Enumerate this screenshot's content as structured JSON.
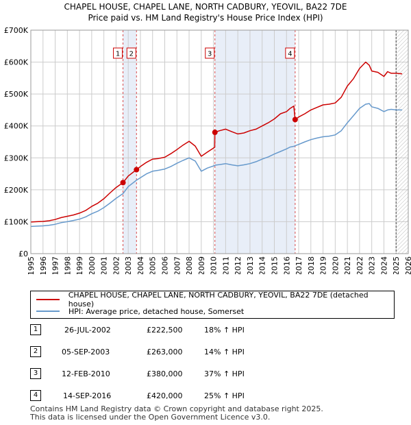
{
  "title_line1": "CHAPEL HOUSE, CHAPEL LANE, NORTH CADBURY, YEOVIL, BA22 7DE",
  "title_line2": "Price paid vs. HM Land Registry's House Price Index (HPI)",
  "colors": {
    "property": "#cc0000",
    "hpi": "#6699cc",
    "shade": "#e8eef8",
    "marker_line": "#cc0000",
    "grid": "#cccccc"
  },
  "chart_data": {
    "type": "line",
    "title": "Price paid vs. HM Land Registry's House Price Index (HPI)",
    "xlim": [
      1995,
      2026
    ],
    "ylim": [
      0,
      700000
    ],
    "y_ticks": [
      {
        "value": 0,
        "label": "£0"
      },
      {
        "value": 100000,
        "label": "£100K"
      },
      {
        "value": 200000,
        "label": "£200K"
      },
      {
        "value": 300000,
        "label": "£300K"
      },
      {
        "value": 400000,
        "label": "£400K"
      },
      {
        "value": 500000,
        "label": "£500K"
      },
      {
        "value": 600000,
        "label": "£600K"
      },
      {
        "value": 700000,
        "label": "£700K"
      }
    ],
    "x_ticks": [
      "1995",
      "1996",
      "1997",
      "1998",
      "1999",
      "2000",
      "2001",
      "2002",
      "2003",
      "2004",
      "2005",
      "2006",
      "2007",
      "2008",
      "2009",
      "2010",
      "2011",
      "2012",
      "2013",
      "2014",
      "2015",
      "2016",
      "2017",
      "2018",
      "2019",
      "2020",
      "2021",
      "2022",
      "2023",
      "2024",
      "2025",
      "2026"
    ],
    "shaded_ranges": [
      [
        2002.57,
        2003.68
      ],
      [
        2010.12,
        2016.71
      ]
    ],
    "forecast_start": 2025.0,
    "series": [
      {
        "name": "CHAPEL HOUSE, CHAPEL LANE, NORTH CADBURY, YEOVIL, BA22 7DE (detached house)",
        "x": [
          1995,
          1995.5,
          1996,
          1996.5,
          1997,
          1997.5,
          1998,
          1998.5,
          1999,
          1999.5,
          2000,
          2000.5,
          2001,
          2001.5,
          2002,
          2002.57,
          2003,
          2003.68,
          2004,
          2004.5,
          2005,
          2005.5,
          2006,
          2006.5,
          2007,
          2007.5,
          2008,
          2008.5,
          2009,
          2009.5,
          2010.1,
          2010.12,
          2010.5,
          2011,
          2011.5,
          2012,
          2012.5,
          2013,
          2013.5,
          2014,
          2014.5,
          2015,
          2015.5,
          2016,
          2016.3,
          2016.6,
          2016.71,
          2017,
          2017.5,
          2018,
          2018.5,
          2019,
          2019.5,
          2020,
          2020.5,
          2021,
          2021.5,
          2022,
          2022.5,
          2022.8,
          2023,
          2023.5,
          2024,
          2024.3,
          2024.6,
          2025,
          2025.5
        ],
        "values": [
          99000,
          100000,
          101000,
          103000,
          107000,
          113000,
          117000,
          121000,
          127000,
          135000,
          148000,
          158000,
          172000,
          190000,
          207000,
          222500,
          243000,
          263000,
          273000,
          286000,
          296000,
          298000,
          302000,
          313000,
          326000,
          340000,
          352000,
          337000,
          305000,
          318000,
          333000,
          380000,
          385000,
          390000,
          382000,
          375000,
          378000,
          385000,
          390000,
          400000,
          410000,
          422000,
          438000,
          445000,
          455000,
          462000,
          420000,
          428000,
          438000,
          450000,
          458000,
          466000,
          468000,
          472000,
          490000,
          525000,
          548000,
          580000,
          600000,
          590000,
          572000,
          568000,
          555000,
          570000,
          565000,
          565000,
          563000
        ]
      },
      {
        "name": "HPI: Average price, detached house, Somerset",
        "x": [
          1995,
          1995.5,
          1996,
          1996.5,
          1997,
          1997.5,
          1998,
          1998.5,
          1999,
          1999.5,
          2000,
          2000.5,
          2001,
          2001.5,
          2002,
          2002.57,
          2003,
          2003.68,
          2004,
          2004.5,
          2005,
          2005.5,
          2006,
          2006.5,
          2007,
          2007.5,
          2008,
          2008.5,
          2009,
          2009.5,
          2010.1,
          2010.12,
          2010.5,
          2011,
          2011.5,
          2012,
          2012.5,
          2013,
          2013.5,
          2014,
          2014.5,
          2015,
          2015.5,
          2016,
          2016.3,
          2016.6,
          2016.71,
          2017,
          2017.5,
          2018,
          2018.5,
          2019,
          2019.5,
          2020,
          2020.5,
          2021,
          2021.5,
          2022,
          2022.5,
          2022.8,
          2023,
          2023.5,
          2024,
          2024.3,
          2024.6,
          2025,
          2025.5
        ],
        "values": [
          85000,
          86000,
          87000,
          89000,
          92000,
          97000,
          100000,
          104000,
          108000,
          115000,
          125000,
          133000,
          144000,
          158000,
          173000,
          188000,
          210000,
          230000,
          238000,
          250000,
          258000,
          261000,
          265000,
          273000,
          283000,
          292000,
          300000,
          290000,
          258000,
          268000,
          276000,
          277000,
          279000,
          282000,
          278000,
          275000,
          278000,
          282000,
          288000,
          296000,
          303000,
          312000,
          320000,
          328000,
          334000,
          336000,
          338000,
          342000,
          350000,
          357000,
          362000,
          366000,
          368000,
          372000,
          385000,
          410000,
          432000,
          455000,
          468000,
          470000,
          460000,
          455000,
          445000,
          450000,
          452000,
          450000,
          450000
        ]
      }
    ],
    "sale_markers": [
      {
        "label": "1",
        "x": 2002.57,
        "value": 222500
      },
      {
        "label": "2",
        "x": 2003.68,
        "value": 263000
      },
      {
        "label": "3",
        "x": 2010.12,
        "value": 380000
      },
      {
        "label": "4",
        "x": 2016.71,
        "value": 420000
      }
    ]
  },
  "legend": {
    "property_label": "CHAPEL HOUSE, CHAPEL LANE, NORTH CADBURY, YEOVIL, BA22 7DE (detached house)",
    "hpi_label": "HPI: Average price, detached house, Somerset"
  },
  "sales": [
    {
      "num": "1",
      "date": "26-JUL-2002",
      "price": "£222,500",
      "hpi": "18% ↑ HPI"
    },
    {
      "num": "2",
      "date": "05-SEP-2003",
      "price": "£263,000",
      "hpi": "14% ↑ HPI"
    },
    {
      "num": "3",
      "date": "12-FEB-2010",
      "price": "£380,000",
      "hpi": "37% ↑ HPI"
    },
    {
      "num": "4",
      "date": "14-SEP-2016",
      "price": "£420,000",
      "hpi": "25% ↑ HPI"
    }
  ],
  "footer_line1": "Contains HM Land Registry data © Crown copyright and database right 2025.",
  "footer_line2": "This data is licensed under the Open Government Licence v3.0."
}
